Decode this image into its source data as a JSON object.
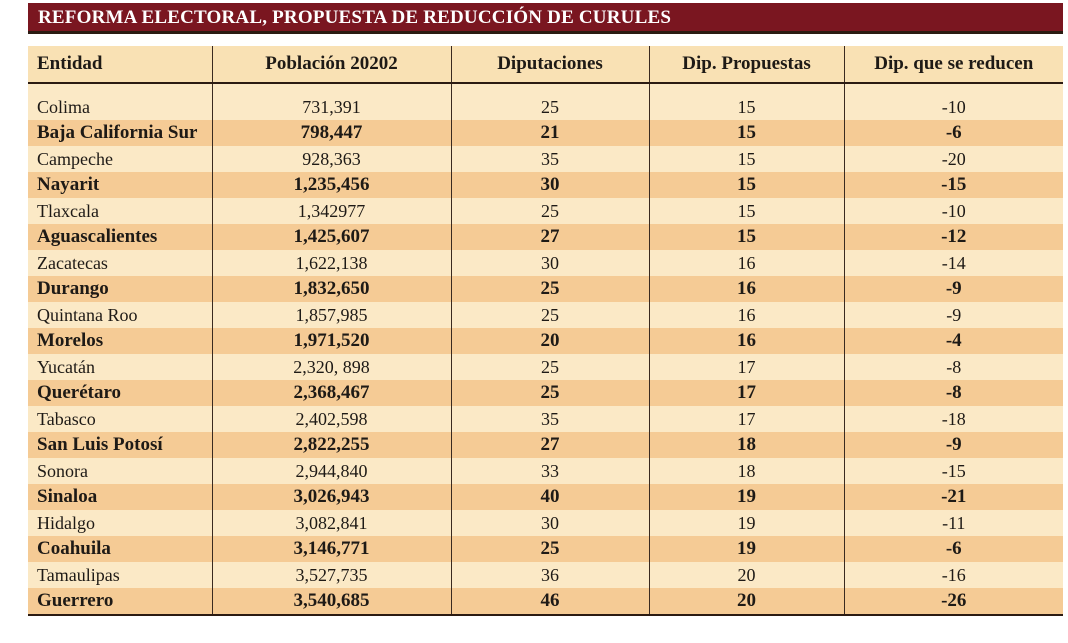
{
  "title": "REFORMA ELECTORAL, PROPUESTA DE REDUCCIÓN DE CURULES",
  "headers": [
    "Entidad",
    "Población 20202",
    "Diputaciones",
    "Dip. Propuestas",
    "Dip. que se reducen"
  ],
  "rows": [
    {
      "entidad": "Colima",
      "poblacion": "731,391",
      "diputaciones": "25",
      "propuestas": "15",
      "reducen": "-10",
      "bold": false
    },
    {
      "entidad": "Baja California Sur",
      "poblacion": "798,447",
      "diputaciones": "21",
      "propuestas": "15",
      "reducen": "-6",
      "bold": true
    },
    {
      "entidad": "Campeche",
      "poblacion": "928,363",
      "diputaciones": "35",
      "propuestas": "15",
      "reducen": "-20",
      "bold": false
    },
    {
      "entidad": "Nayarit",
      "poblacion": "1,235,456",
      "diputaciones": "30",
      "propuestas": "15",
      "reducen": "-15",
      "bold": true
    },
    {
      "entidad": "Tlaxcala",
      "poblacion": "1,342977",
      "diputaciones": "25",
      "propuestas": "15",
      "reducen": "-10",
      "bold": false
    },
    {
      "entidad": "Aguascalientes",
      "poblacion": "1,425,607",
      "diputaciones": "27",
      "propuestas": "15",
      "reducen": "-12",
      "bold": true
    },
    {
      "entidad": "Zacatecas",
      "poblacion": "1,622,138",
      "diputaciones": "30",
      "propuestas": "16",
      "reducen": "-14",
      "bold": false
    },
    {
      "entidad": "Durango",
      "poblacion": "1,832,650",
      "diputaciones": "25",
      "propuestas": "16",
      "reducen": "-9",
      "bold": true
    },
    {
      "entidad": "Quintana Roo",
      "poblacion": "1,857,985",
      "diputaciones": "25",
      "propuestas": "16",
      "reducen": "-9",
      "bold": false
    },
    {
      "entidad": "Morelos",
      "poblacion": "1,971,520",
      "diputaciones": "20",
      "propuestas": "16",
      "reducen": "-4",
      "bold": true
    },
    {
      "entidad": "Yucatán",
      "poblacion": "2,320, 898",
      "diputaciones": "25",
      "propuestas": "17",
      "reducen": "-8",
      "bold": false
    },
    {
      "entidad": "Querétaro",
      "poblacion": "2,368,467",
      "diputaciones": "25",
      "propuestas": "17",
      "reducen": "-8",
      "bold": true
    },
    {
      "entidad": "Tabasco",
      "poblacion": "2,402,598",
      "diputaciones": "35",
      "propuestas": "17",
      "reducen": "-18",
      "bold": false
    },
    {
      "entidad": "San Luis Potosí",
      "poblacion": "2,822,255",
      "diputaciones": "27",
      "propuestas": "18",
      "reducen": "-9",
      "bold": true
    },
    {
      "entidad": "Sonora",
      "poblacion": "2,944,840",
      "diputaciones": "33",
      "propuestas": "18",
      "reducen": "-15",
      "bold": false
    },
    {
      "entidad": "Sinaloa",
      "poblacion": "3,026,943",
      "diputaciones": "40",
      "propuestas": "19",
      "reducen": "-21",
      "bold": true
    },
    {
      "entidad": "Hidalgo",
      "poblacion": "3,082,841",
      "diputaciones": "30",
      "propuestas": "19",
      "reducen": "-11",
      "bold": false
    },
    {
      "entidad": "Coahuila",
      "poblacion": "3,146,771",
      "diputaciones": "25",
      "propuestas": "19",
      "reducen": "-6",
      "bold": true
    },
    {
      "entidad": "Tamaulipas",
      "poblacion": "3,527,735",
      "diputaciones": "36",
      "propuestas": "20",
      "reducen": "-16",
      "bold": false
    },
    {
      "entidad": "Guerrero",
      "poblacion": "3,540,685",
      "diputaciones": "46",
      "propuestas": "20",
      "reducen": "-26",
      "bold": true
    }
  ],
  "colors": {
    "title_bg": "#7a1620",
    "header_bg": "#f9e1b4",
    "row_light": "#fbe9c6",
    "row_dark": "#f5cb95"
  }
}
